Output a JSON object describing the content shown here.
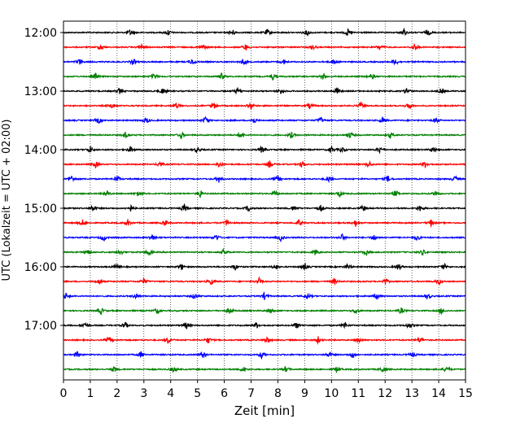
{
  "chart_data": {
    "type": "line",
    "title": "",
    "xlabel": "Zeit  [min]",
    "ylabel": "UTC (Lokalzeit = UTC + 02:00)",
    "xlim": [
      0,
      15
    ],
    "x_ticks": [
      "0",
      "1",
      "2",
      "3",
      "4",
      "5",
      "6",
      "7",
      "8",
      "9",
      "10",
      "11",
      "12",
      "13",
      "14",
      "15"
    ],
    "y_ticks": [
      "12:00",
      "13:00",
      "14:00",
      "15:00",
      "16:00",
      "17:00"
    ],
    "grid": "vertical dotted",
    "trace_interval_min": 15,
    "colors_cycle": [
      "#000000",
      "#ff0000",
      "#0000ff",
      "#008000"
    ],
    "traces": [
      {
        "start": "12:00",
        "color": "#000000",
        "bursts": [
          2.5,
          3.9,
          6.3,
          7.6,
          9.1,
          10.6,
          12.7,
          13.6
        ]
      },
      {
        "start": "12:15",
        "color": "#ff0000",
        "bursts": [
          1.4,
          2.9,
          5.2,
          6.8,
          9.3,
          11.8,
          13.1
        ]
      },
      {
        "start": "12:30",
        "color": "#0000ff",
        "bursts": [
          0.6,
          2.6,
          4.8,
          6.7,
          8.2,
          10.1,
          12.4
        ]
      },
      {
        "start": "12:45",
        "color": "#008000",
        "bursts": [
          1.2,
          3.4,
          5.9,
          7.8,
          9.7,
          11.5
        ]
      },
      {
        "start": "13:00",
        "color": "#000000",
        "bursts": [
          2.1,
          3.7,
          6.5,
          8.1,
          10.2,
          12.8,
          14.1
        ]
      },
      {
        "start": "13:15",
        "color": "#ff0000",
        "bursts": [
          1.8,
          4.2,
          5.6,
          7.0,
          9.2,
          11.1,
          12.9
        ]
      },
      {
        "start": "13:30",
        "color": "#0000ff",
        "bursts": [
          1.3,
          3.1,
          5.3,
          7.1,
          9.6,
          11.9,
          13.9
        ]
      },
      {
        "start": "13:45",
        "color": "#008000",
        "bursts": [
          2.3,
          4.4,
          6.6,
          8.5,
          10.7,
          12.2
        ]
      },
      {
        "start": "14:00",
        "color": "#000000",
        "bursts": [
          1.0,
          2.5,
          5.0,
          7.4,
          10.0,
          10.4,
          11.8,
          13.8
        ]
      },
      {
        "start": "14:15",
        "color": "#ff0000",
        "bursts": [
          1.2,
          3.6,
          5.8,
          7.7,
          8.9,
          11.4,
          13.5
        ]
      },
      {
        "start": "14:30",
        "color": "#0000ff",
        "bursts": [
          0.3,
          2.0,
          5.8,
          8.0,
          9.9,
          12.1,
          14.6
        ]
      },
      {
        "start": "14:45",
        "color": "#008000",
        "bursts": [
          1.6,
          2.8,
          5.1,
          7.9,
          10.3,
          12.4,
          13.9
        ]
      },
      {
        "start": "15:00",
        "color": "#000000",
        "bursts": [
          1.1,
          2.5,
          4.5,
          6.9,
          8.6,
          9.6,
          11.2,
          13.3
        ]
      },
      {
        "start": "15:15",
        "color": "#ff0000",
        "bursts": [
          0.7,
          2.4,
          3.8,
          6.1,
          8.8,
          10.9,
          13.7
        ]
      },
      {
        "start": "15:30",
        "color": "#0000ff",
        "bursts": [
          1.5,
          3.3,
          5.7,
          8.1,
          10.4,
          11.6,
          13.2
        ]
      },
      {
        "start": "15:45",
        "color": "#008000",
        "bursts": [
          0.9,
          2.1,
          3.2,
          6.0,
          9.4,
          11.3,
          13.4
        ]
      },
      {
        "start": "16:00",
        "color": "#000000",
        "bursts": [
          2.0,
          4.4,
          6.4,
          7.9,
          9.0,
          10.6,
          12.5,
          14.2
        ]
      },
      {
        "start": "16:15",
        "color": "#ff0000",
        "bursts": [
          1.3,
          3.0,
          5.5,
          7.3,
          10.1,
          12.0,
          14.0
        ]
      },
      {
        "start": "16:30",
        "color": "#0000ff",
        "bursts": [
          0.1,
          2.7,
          4.9,
          7.5,
          9.1,
          11.7,
          13.6
        ]
      },
      {
        "start": "16:45",
        "color": "#008000",
        "bursts": [
          1.4,
          3.5,
          6.2,
          7.7,
          10.9,
          12.6,
          14.1
        ]
      },
      {
        "start": "17:00",
        "color": "#000000",
        "bursts": [
          0.8,
          2.3,
          4.6,
          7.2,
          8.7,
          10.5,
          12.9
        ]
      },
      {
        "start": "17:15",
        "color": "#ff0000",
        "bursts": [
          1.7,
          3.9,
          5.4,
          7.6,
          9.5,
          11.0,
          13.3
        ]
      },
      {
        "start": "17:30",
        "color": "#0000ff",
        "bursts": [
          0.5,
          2.9,
          5.2,
          7.4,
          9.9,
          10.8,
          13.0
        ]
      },
      {
        "start": "17:45",
        "color": "#008000",
        "bursts": [
          1.9,
          4.1,
          6.7,
          8.3,
          10.2,
          11.9,
          14.3
        ]
      }
    ]
  }
}
